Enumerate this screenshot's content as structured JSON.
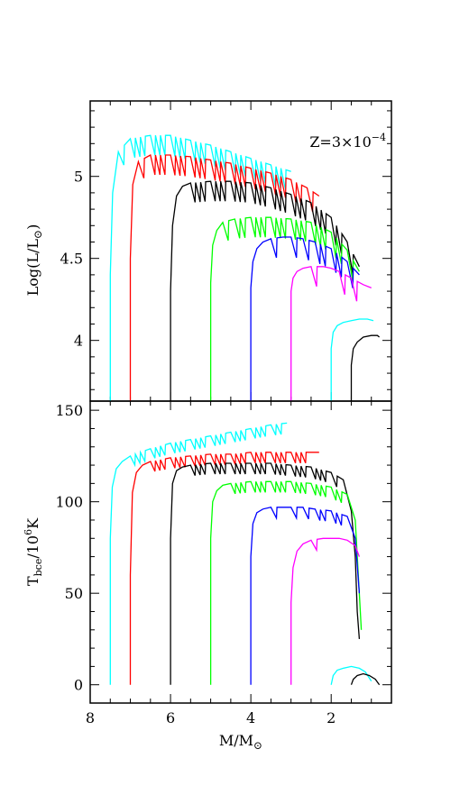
{
  "figure": {
    "annotation_prefix": "Z=3×10",
    "annotation_exponent": "−4"
  },
  "chart_data": [
    {
      "type": "line",
      "panel": "top",
      "ylabel": "Log(L/L⊙)",
      "ylabel_main": "Log(L/L",
      "ylabel_sun": "⊙",
      "ylabel_close": ")",
      "xlim": [
        8,
        0.5
      ],
      "ylim": [
        3.63,
        5.46
      ],
      "yticks": [
        4,
        4.5,
        5
      ],
      "ytick_labels": [
        "4",
        "4.5",
        "5"
      ],
      "annotation": "Z=3×10−4",
      "series": [
        {
          "color": "#00ffff",
          "x": [
            7.5,
            7.5,
            7.44,
            7.3,
            7.0,
            6.5,
            6.0,
            5.5,
            5.0,
            4.5,
            4.0,
            3.5,
            3.0
          ],
          "y": [
            3.63,
            4.4,
            4.9,
            5.15,
            5.23,
            5.25,
            5.25,
            5.22,
            5.19,
            5.15,
            5.11,
            5.07,
            5.03
          ]
        },
        {
          "color": "#ff0000",
          "x": [
            7.0,
            7.0,
            6.94,
            6.8,
            6.5,
            6.0,
            5.5,
            5.0,
            4.5,
            4.0,
            3.5,
            3.0,
            2.6,
            2.3
          ],
          "y": [
            3.63,
            4.5,
            4.95,
            5.09,
            5.13,
            5.13,
            5.12,
            5.1,
            5.08,
            5.05,
            5.02,
            4.98,
            4.93,
            4.88
          ]
        },
        {
          "color": "#000000",
          "x": [
            6.0,
            6.0,
            5.95,
            5.85,
            5.7,
            5.5,
            5.0,
            4.5,
            4.0,
            3.5,
            3.0,
            2.5,
            2.0,
            1.6,
            1.3
          ],
          "y": [
            3.63,
            4.3,
            4.7,
            4.88,
            4.94,
            4.96,
            4.97,
            4.97,
            4.96,
            4.93,
            4.89,
            4.84,
            4.75,
            4.6,
            4.45
          ]
        },
        {
          "color": "#00ff00",
          "x": [
            5.0,
            5.0,
            4.95,
            4.85,
            4.7,
            4.4,
            4.0,
            3.5,
            3.0,
            2.5,
            2.0,
            1.6,
            1.3
          ],
          "y": [
            3.63,
            4.35,
            4.58,
            4.67,
            4.72,
            4.74,
            4.75,
            4.75,
            4.74,
            4.72,
            4.66,
            4.55,
            4.42
          ]
        },
        {
          "color": "#0000ff",
          "x": [
            4.0,
            4.0,
            3.95,
            3.85,
            3.7,
            3.5,
            3.2,
            3.0,
            2.7,
            2.4,
            2.0,
            1.6,
            1.3
          ],
          "y": [
            3.63,
            4.32,
            4.48,
            4.56,
            4.6,
            4.62,
            4.63,
            4.63,
            4.62,
            4.6,
            4.56,
            4.48,
            4.4
          ]
        },
        {
          "color": "#ff00ff",
          "x": [
            3.0,
            3.0,
            2.95,
            2.85,
            2.7,
            2.5,
            2.2,
            2.0,
            1.8,
            1.5,
            1.2,
            1.0
          ],
          "y": [
            3.63,
            4.3,
            4.38,
            4.42,
            4.44,
            4.45,
            4.45,
            4.44,
            4.42,
            4.38,
            4.34,
            4.32
          ]
        },
        {
          "color": "#00ffff",
          "x": [
            2.0,
            2.0,
            1.95,
            1.85,
            1.7,
            1.5,
            1.3,
            1.1,
            0.95
          ],
          "y": [
            3.63,
            3.95,
            4.05,
            4.09,
            4.11,
            4.12,
            4.13,
            4.13,
            4.12
          ]
        },
        {
          "color": "#000000",
          "x": [
            1.5,
            1.5,
            1.45,
            1.35,
            1.2,
            1.0,
            0.85,
            0.8
          ],
          "y": [
            3.63,
            3.85,
            3.95,
            3.99,
            4.02,
            4.03,
            4.03,
            4.02
          ]
        }
      ]
    },
    {
      "type": "line",
      "panel": "bottom",
      "xlabel": "M/M⊙",
      "xlabel_main": "M/M",
      "xlabel_sun": "⊙",
      "ylabel": "Tbce/106K",
      "ylabel_T": "T",
      "ylabel_sub": "bce",
      "ylabel_mid": "/10",
      "ylabel_sup": "6",
      "ylabel_end": "K",
      "xlim": [
        8,
        0.5
      ],
      "ylim": [
        -10,
        155
      ],
      "xticks": [
        8,
        6,
        4,
        2
      ],
      "xtick_labels": [
        "8",
        "6",
        "4",
        "2"
      ],
      "yticks": [
        0,
        50,
        100,
        150
      ],
      "ytick_labels": [
        "0",
        "50",
        "100",
        "150"
      ],
      "series": [
        {
          "color": "#00ffff",
          "x": [
            7.5,
            7.5,
            7.45,
            7.35,
            7.2,
            7.0,
            6.5,
            6.0,
            5.5,
            5.0,
            4.5,
            4.0,
            3.5,
            3.1
          ],
          "y": [
            0,
            80,
            108,
            118,
            122,
            125,
            129,
            132,
            134,
            136,
            138,
            140,
            142,
            143
          ]
        },
        {
          "color": "#ff0000",
          "x": [
            7.0,
            7.0,
            6.95,
            6.85,
            6.7,
            6.5,
            6.0,
            5.5,
            5.0,
            4.5,
            4.0,
            3.5,
            3.0,
            2.5,
            2.3
          ],
          "y": [
            0,
            60,
            105,
            116,
            120,
            122,
            124,
            125,
            126,
            126,
            127,
            127,
            127,
            127,
            127
          ]
        },
        {
          "color": "#000000",
          "x": [
            6.0,
            6.0,
            5.95,
            5.85,
            5.7,
            5.5,
            5.0,
            4.5,
            4.0,
            3.5,
            3.0,
            2.5,
            2.0,
            1.7,
            1.5,
            1.4,
            1.35,
            1.3
          ],
          "y": [
            0,
            80,
            110,
            117,
            119,
            120,
            121,
            121,
            121,
            121,
            120,
            119,
            116,
            112,
            95,
            70,
            40,
            25
          ]
        },
        {
          "color": "#00ff00",
          "x": [
            5.0,
            5.0,
            4.95,
            4.85,
            4.7,
            4.5,
            4.0,
            3.5,
            3.0,
            2.5,
            2.0,
            1.6,
            1.4,
            1.3,
            1.25
          ],
          "y": [
            0,
            80,
            100,
            106,
            109,
            110,
            111,
            111,
            111,
            110,
            108,
            104,
            90,
            50,
            30
          ]
        },
        {
          "color": "#0000ff",
          "x": [
            4.0,
            4.0,
            3.95,
            3.85,
            3.7,
            3.5,
            3.2,
            3.0,
            2.7,
            2.4,
            2.0,
            1.6,
            1.4,
            1.3
          ],
          "y": [
            0,
            70,
            88,
            94,
            96,
            97,
            97,
            97,
            97,
            96,
            95,
            92,
            80,
            50
          ]
        },
        {
          "color": "#ff00ff",
          "x": [
            3.0,
            3.0,
            2.95,
            2.85,
            2.7,
            2.5,
            2.2,
            2.0,
            1.8,
            1.6,
            1.4,
            1.3
          ],
          "y": [
            0,
            45,
            64,
            73,
            77,
            79,
            80,
            80,
            80,
            79,
            76,
            70
          ]
        },
        {
          "color": "#00ffff",
          "x": [
            2.0,
            1.95,
            1.85,
            1.7,
            1.5,
            1.3,
            1.15,
            1.0
          ],
          "y": [
            0,
            5,
            8,
            9,
            10,
            9,
            7,
            2
          ]
        },
        {
          "color": "#000000",
          "x": [
            1.5,
            1.45,
            1.35,
            1.2,
            1.05,
            0.9,
            0.8
          ],
          "y": [
            0,
            3,
            5,
            6,
            5,
            3,
            0
          ]
        }
      ]
    }
  ]
}
